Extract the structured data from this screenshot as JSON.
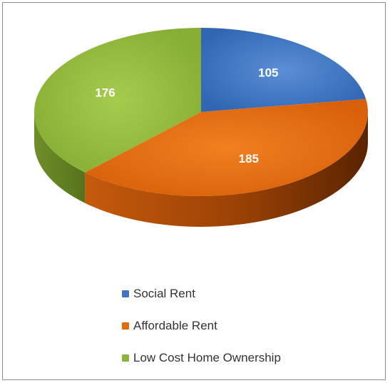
{
  "chart_data": {
    "type": "pie",
    "style": "3d",
    "categories": [
      "Social Rent",
      "Affordable Rent",
      "Low Cost Home Ownership"
    ],
    "values": [
      105,
      185,
      176
    ],
    "colors": [
      "#4472C4",
      "#E36C09",
      "#8DB33A"
    ],
    "legend_position": "bottom",
    "data_labels": [
      "105",
      "185",
      "176"
    ]
  }
}
